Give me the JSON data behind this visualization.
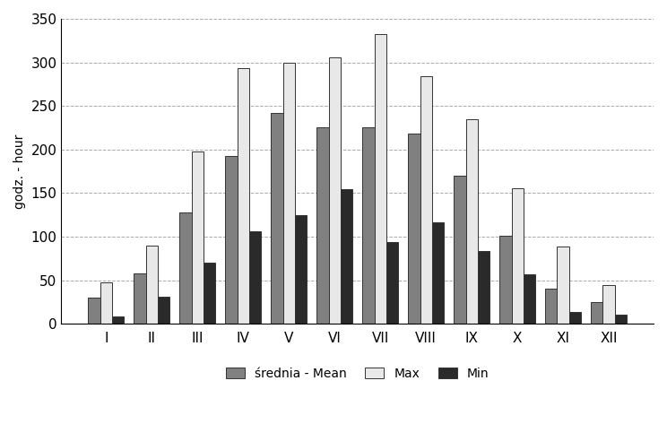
{
  "months": [
    "I",
    "II",
    "III",
    "IV",
    "V",
    "VI",
    "VII",
    "VIII",
    "IX",
    "X",
    "XI",
    "XII"
  ],
  "mean": [
    30,
    58,
    128,
    193,
    242,
    226,
    226,
    218,
    170,
    101,
    40,
    25
  ],
  "max": [
    47,
    90,
    198,
    293,
    300,
    306,
    333,
    284,
    235,
    156,
    89,
    44
  ],
  "min": [
    8,
    31,
    70,
    106,
    125,
    155,
    94,
    116,
    84,
    57,
    14,
    10
  ],
  "ylabel": "godz. - hour",
  "ylim": [
    0,
    350
  ],
  "yticks": [
    0,
    50,
    100,
    150,
    200,
    250,
    300,
    350
  ],
  "mean_color": "#808080",
  "max_color": "#e8e8e8",
  "min_color": "#2a2a2a",
  "legend_max": "Max",
  "legend_min": "Min",
  "bar_edge_color": "#333333",
  "background_color": "#ffffff",
  "grid_color": "#aaaaaa"
}
